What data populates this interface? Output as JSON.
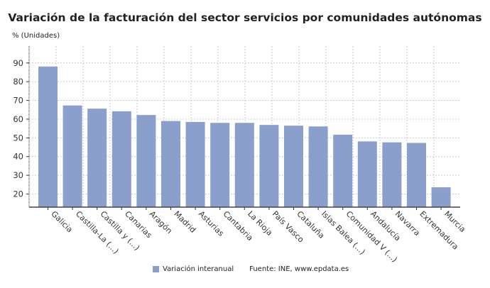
{
  "chart_data": {
    "type": "bar",
    "title": "Variación de la facturación del sector servicios por comunidades autónomas",
    "ylabel": "% (Unidades)",
    "xlabel": "",
    "categories": [
      "Galicia",
      "Castilla-La (...)",
      "Castilla y (...)",
      "Canarias",
      "Aragón",
      "Madrid",
      "Asturias",
      "Cantabria",
      "La Rioja",
      "País Vasco",
      "Cataluña",
      "Islas Balea (...)",
      "Comunidad V (...)",
      "Andalucía",
      "Navarra",
      "Extremadura",
      "Murcia"
    ],
    "series": [
      {
        "name": "Variación interanual",
        "values": [
          88.1,
          67.3,
          65.6,
          64.2,
          62.2,
          59.0,
          58.5,
          58.0,
          58.0,
          56.9,
          56.5,
          56.1,
          51.7,
          48.1,
          47.6,
          47.3,
          23.6
        ]
      }
    ],
    "ylim": [
      13,
      99
    ],
    "yticks": [
      20,
      30,
      40,
      50,
      60,
      70,
      80,
      90
    ],
    "grid": true,
    "legend": "bottom",
    "color": "#8a9fcb"
  },
  "source": "Fuente: INE, www.epdata.es"
}
